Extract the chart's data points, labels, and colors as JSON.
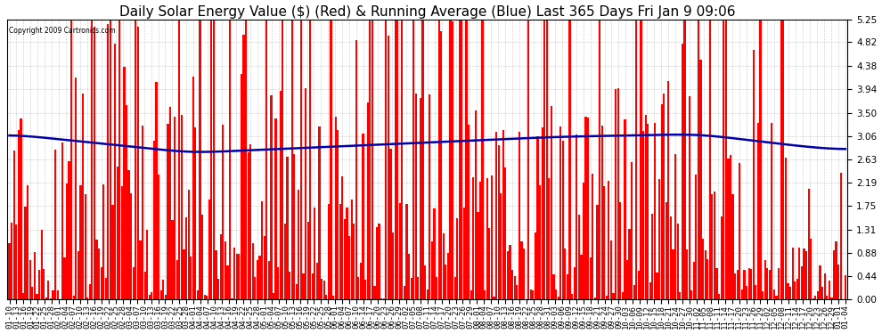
{
  "title": "Daily Solar Energy Value ($) (Red) & Running Average (Blue) Last 365 Days Fri Jan 9 09:06",
  "copyright_text": "Copyright 2009 Cartronics.com",
  "ylim": [
    0.0,
    5.25
  ],
  "yticks": [
    0.0,
    0.44,
    0.88,
    1.31,
    1.75,
    2.19,
    2.63,
    3.06,
    3.5,
    3.94,
    4.38,
    4.82,
    5.25
  ],
  "bar_color": "#ff0000",
  "avg_line_color": "#0000aa",
  "background_color": "#ffffff",
  "grid_color": "#bbbbbb",
  "title_fontsize": 11,
  "tick_label_fontsize": 6.5,
  "avg_line_level": 3.0,
  "x_labels": [
    "01-10",
    "01-13",
    "01-16",
    "01-19",
    "01-22",
    "01-25",
    "01-28",
    "02-01",
    "02-04",
    "02-07",
    "02-10",
    "02-13",
    "02-16",
    "02-19",
    "02-22",
    "02-25",
    "02-28",
    "03-04",
    "03-07",
    "03-10",
    "03-13",
    "03-16",
    "03-19",
    "03-22",
    "03-25",
    "03-28",
    "04-01",
    "04-04",
    "04-07",
    "04-10",
    "04-13",
    "04-16",
    "04-19",
    "04-22",
    "04-25",
    "04-28",
    "05-01",
    "05-04",
    "05-07",
    "05-10",
    "05-13",
    "05-16",
    "05-19",
    "05-22",
    "05-25",
    "05-28",
    "06-01",
    "06-04",
    "06-07",
    "06-10",
    "06-14",
    "06-17",
    "06-20",
    "06-23",
    "06-26",
    "06-29",
    "07-02",
    "07-05",
    "07-08",
    "07-11",
    "07-14",
    "07-17",
    "07-20",
    "07-23",
    "07-26",
    "07-29",
    "08-01",
    "08-04",
    "08-07",
    "08-10",
    "08-13",
    "08-16",
    "08-19",
    "08-22",
    "08-25",
    "08-28",
    "08-31",
    "09-03",
    "09-06",
    "09-09",
    "09-12",
    "09-15",
    "09-18",
    "09-21",
    "09-24",
    "09-27",
    "09-30",
    "10-03",
    "10-06",
    "10-09",
    "10-12",
    "10-15",
    "10-18",
    "10-21",
    "10-24",
    "10-27",
    "10-30",
    "11-02",
    "11-05",
    "11-08",
    "11-11",
    "11-14",
    "11-17",
    "11-20",
    "11-23",
    "11-26",
    "11-29",
    "12-02",
    "12-05",
    "12-08",
    "12-11",
    "12-14",
    "12-17",
    "12-20",
    "12-23",
    "12-26",
    "12-29",
    "01-01",
    "01-04"
  ]
}
